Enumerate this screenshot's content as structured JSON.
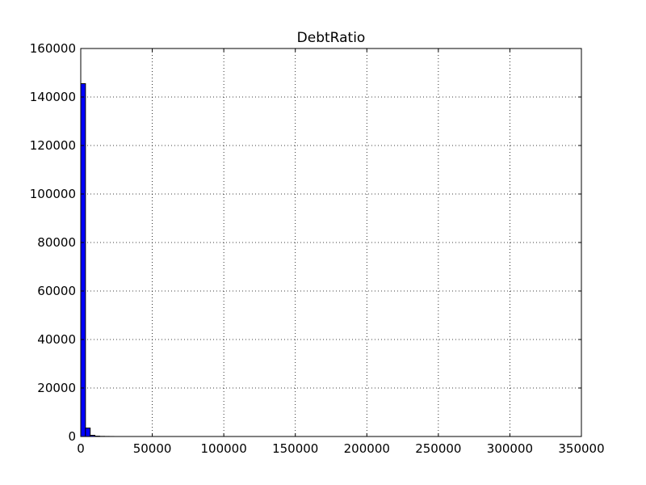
{
  "chart_data": {
    "type": "bar",
    "title": "DebtRatio",
    "xlabel": "",
    "ylabel": "",
    "xlim": [
      0,
      350000
    ],
    "ylim": [
      0,
      160000
    ],
    "xticks": [
      0,
      50000,
      100000,
      150000,
      200000,
      250000,
      300000,
      350000
    ],
    "yticks": [
      0,
      20000,
      40000,
      60000,
      80000,
      100000,
      120000,
      140000,
      160000
    ],
    "grid": true,
    "bar_color": "#0000ff",
    "bins": [
      {
        "x0": 0,
        "x1": 3300,
        "count": 145500
      },
      {
        "x0": 3300,
        "x1": 6600,
        "count": 3500
      },
      {
        "x0": 6600,
        "x1": 9900,
        "count": 500
      },
      {
        "x0": 9900,
        "x1": 13200,
        "count": 150
      },
      {
        "x0": 13200,
        "x1": 16500,
        "count": 60
      },
      {
        "x0": 16500,
        "x1": 19800,
        "count": 30
      },
      {
        "x0": 19800,
        "x1": 23100,
        "count": 15
      }
    ]
  }
}
